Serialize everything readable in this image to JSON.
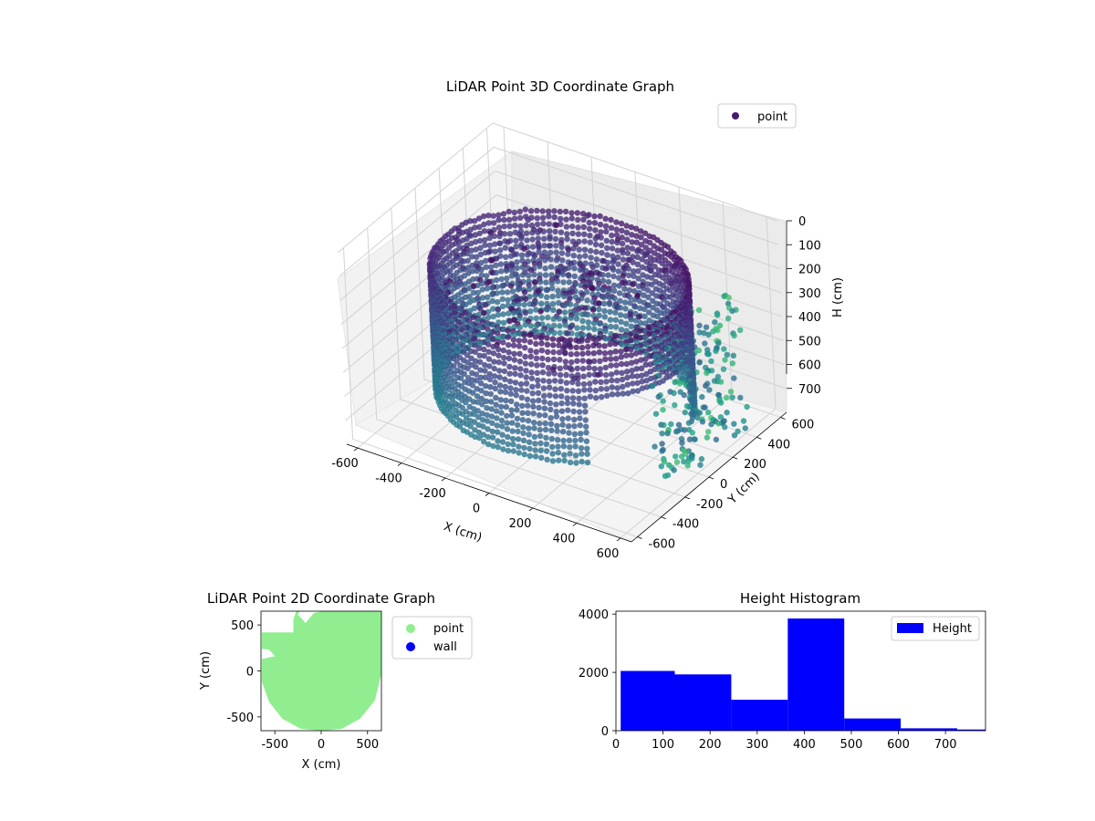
{
  "chart_data": [
    {
      "type": "scatter",
      "title": "LiDAR Point 3D Coordinate Graph",
      "xlabel": "X (cm)",
      "ylabel": "Y (cm)",
      "zlabel": "H (cm)",
      "xlim": [
        -650,
        650
      ],
      "ylim": [
        -650,
        650
      ],
      "zlim": [
        800,
        0
      ],
      "x_ticks": [
        -600,
        -400,
        -200,
        0,
        200,
        400,
        600
      ],
      "y_ticks": [
        -600,
        -400,
        -200,
        0,
        200,
        400,
        600
      ],
      "z_ticks": [
        0,
        100,
        200,
        300,
        400,
        500,
        600,
        700
      ],
      "legend": [
        {
          "label": "point",
          "color": "#481a6c"
        }
      ],
      "legend_position": "top-right",
      "colormap": "viridis",
      "grid": true
    },
    {
      "type": "scatter",
      "title": "LiDAR Point 2D Coordinate Graph",
      "xlabel": "X (cm)",
      "ylabel": "Y (cm)",
      "xlim": [
        -650,
        650
      ],
      "ylim": [
        -650,
        650
      ],
      "x_ticks": [
        -500,
        0,
        500
      ],
      "y_ticks": [
        500,
        0,
        -500
      ],
      "series": [
        {
          "name": "point",
          "color": "#90ee90"
        },
        {
          "name": "wall",
          "color": "#0000ff"
        }
      ],
      "legend_position": "right-outside"
    },
    {
      "type": "bar",
      "title": "Height Histogram",
      "series": [
        {
          "name": "Height",
          "color": "#0000ff"
        }
      ],
      "bins": [
        {
          "start": 10,
          "end": 125,
          "value": 2050
        },
        {
          "start": 125,
          "end": 245,
          "value": 1930
        },
        {
          "start": 245,
          "end": 365,
          "value": 1060
        },
        {
          "start": 365,
          "end": 485,
          "value": 3850
        },
        {
          "start": 485,
          "end": 605,
          "value": 420
        },
        {
          "start": 605,
          "end": 725,
          "value": 80
        },
        {
          "start": 725,
          "end": 785,
          "value": 40
        }
      ],
      "xlim": [
        0,
        785
      ],
      "ylim": [
        0,
        4100
      ],
      "x_ticks": [
        0,
        100,
        200,
        300,
        400,
        500,
        600,
        700
      ],
      "y_ticks": [
        0,
        2000,
        4000
      ],
      "legend_position": "top-right"
    }
  ]
}
